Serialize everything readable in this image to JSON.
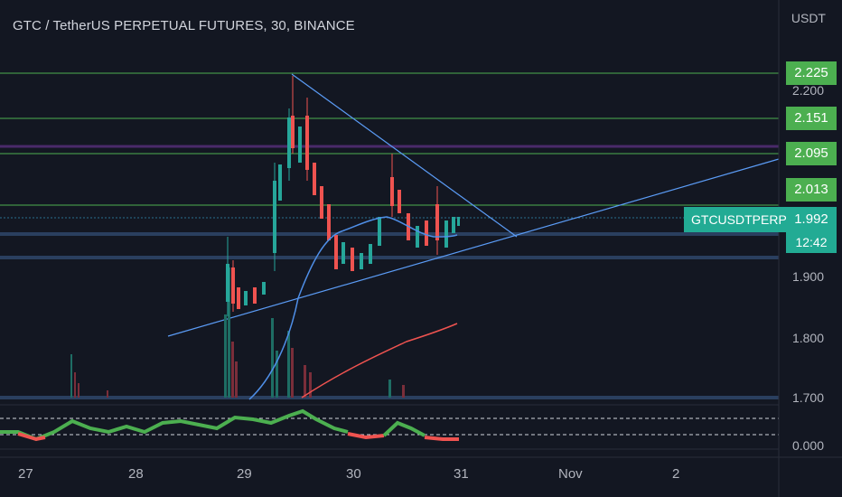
{
  "header": {
    "title": "GTC / TetherUS PERPETUAL FUTURES, 30, BINANCE",
    "currency": "USDT"
  },
  "price_axis": {
    "ticks": [
      "2.200",
      "1.900",
      "1.800",
      "1.700",
      "0.000"
    ],
    "tags": {
      "level_1": "2.225",
      "level_2": "2.151",
      "level_3": "2.095",
      "level_4": "2.013",
      "last_price": "1.992",
      "countdown": "12:42"
    },
    "symbol_tag": "GTCUSDTPERP"
  },
  "time_axis": {
    "ticks": [
      "27",
      "28",
      "29",
      "30",
      "31",
      "Nov",
      "2"
    ]
  },
  "colors": {
    "background": "#131722",
    "up": "#26a69a",
    "down": "#ef5350",
    "level_line": "#4caf50",
    "purple_line": "#7b1fa2",
    "trendline": "#5b9cf6",
    "ma_fast": "#4f8fe8",
    "ma_slow": "#ef5350"
  }
}
